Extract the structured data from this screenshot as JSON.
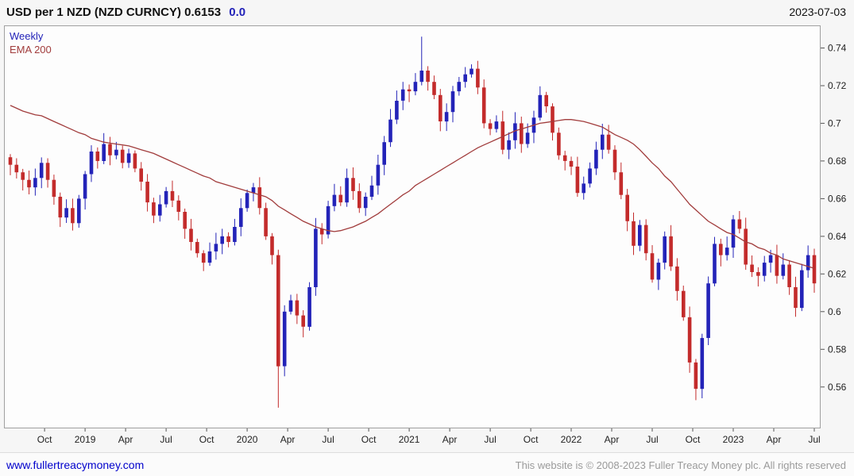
{
  "header": {
    "title": "USD per 1 NZD (NZD CURNCY) 0.6153",
    "change": "0.0",
    "date": "2023-07-03"
  },
  "legend": {
    "timeframe": "Weekly",
    "ema_label": "EMA 200"
  },
  "footer": {
    "link": "www.fullertreacymoney.com",
    "copyright": "This website is © 2008-2023 Fuller Treacy Money plc. All rights reserved"
  },
  "colors": {
    "up": "#2323b8",
    "down": "#c32b2b",
    "ema": "#a13c3c",
    "plot_bg": "#fdfdfd",
    "border": "#a0a0a0",
    "tick": "#555555",
    "label": "#222222",
    "link": "#0000cc",
    "legend_tf": "#2323b8"
  },
  "chart_data": {
    "type": "candlestick",
    "title": "USD per 1 NZD (NZD CURNCY)",
    "timeframe": "Weekly",
    "overlay": "EMA 200",
    "last_price": 0.6153,
    "change": 0.0,
    "ylim": [
      0.538,
      0.752
    ],
    "y_ticks": [
      0.74,
      0.72,
      0.7,
      0.68,
      0.66,
      0.64,
      0.62,
      0.6,
      0.58,
      0.56
    ],
    "y_tick_labels": [
      "0.74",
      "0.72",
      "0.7",
      "0.68",
      "0.66",
      "0.64",
      "0.62",
      "0.6",
      "0.58",
      "0.56"
    ],
    "x_ticks": [
      "Oct",
      "2019",
      "Apr",
      "Jul",
      "Oct",
      "2020",
      "Apr",
      "Jul",
      "Oct",
      "2021",
      "Apr",
      "Jul",
      "Oct",
      "2022",
      "Apr",
      "Jul",
      "Oct",
      "2023",
      "Apr",
      "Jul"
    ],
    "x_tick_positions": [
      5.5,
      12,
      18.5,
      25,
      31.5,
      38,
      44.5,
      51,
      57.5,
      64,
      70.5,
      77,
      83.5,
      90,
      96.5,
      103,
      109.5,
      116,
      122.5,
      129
    ],
    "closes": [
      0.678,
      0.674,
      0.67,
      0.666,
      0.671,
      0.679,
      0.67,
      0.661,
      0.65,
      0.655,
      0.647,
      0.66,
      0.673,
      0.685,
      0.68,
      0.689,
      0.683,
      0.686,
      0.679,
      0.684,
      0.676,
      0.669,
      0.658,
      0.651,
      0.657,
      0.664,
      0.659,
      0.653,
      0.644,
      0.637,
      0.631,
      0.626,
      0.632,
      0.636,
      0.64,
      0.637,
      0.645,
      0.655,
      0.663,
      0.666,
      0.655,
      0.64,
      0.63,
      0.571,
      0.6,
      0.606,
      0.598,
      0.592,
      0.613,
      0.644,
      0.641,
      0.656,
      0.662,
      0.658,
      0.671,
      0.664,
      0.655,
      0.661,
      0.667,
      0.678,
      0.69,
      0.702,
      0.712,
      0.718,
      0.717,
      0.722,
      0.728,
      0.722,
      0.715,
      0.701,
      0.706,
      0.717,
      0.722,
      0.726,
      0.729,
      0.719,
      0.7,
      0.697,
      0.701,
      0.686,
      0.691,
      0.7,
      0.689,
      0.695,
      0.703,
      0.715,
      0.709,
      0.695,
      0.683,
      0.68,
      0.677,
      0.663,
      0.668,
      0.676,
      0.686,
      0.694,
      0.686,
      0.674,
      0.662,
      0.648,
      0.635,
      0.646,
      0.631,
      0.617,
      0.626,
      0.64,
      0.624,
      0.611,
      0.597,
      0.573,
      0.559,
      0.586,
      0.615,
      0.636,
      0.63,
      0.634,
      0.649,
      0.644,
      0.625,
      0.621,
      0.619,
      0.626,
      0.63,
      0.619,
      0.625,
      0.613,
      0.602,
      0.622,
      0.63,
      0.615
    ],
    "ema": [
      0.7095,
      0.708,
      0.7065,
      0.7055,
      0.7045,
      0.704,
      0.7025,
      0.701,
      0.6995,
      0.698,
      0.6965,
      0.695,
      0.694,
      0.692,
      0.691,
      0.69,
      0.6895,
      0.689,
      0.6885,
      0.688,
      0.687,
      0.686,
      0.685,
      0.684,
      0.6825,
      0.681,
      0.6795,
      0.678,
      0.6765,
      0.675,
      0.6735,
      0.672,
      0.671,
      0.669,
      0.668,
      0.667,
      0.666,
      0.665,
      0.664,
      0.663,
      0.662,
      0.661,
      0.659,
      0.656,
      0.654,
      0.652,
      0.65,
      0.648,
      0.6465,
      0.645,
      0.644,
      0.643,
      0.6425,
      0.643,
      0.644,
      0.645,
      0.6465,
      0.648,
      0.65,
      0.652,
      0.6545,
      0.657,
      0.6595,
      0.662,
      0.664,
      0.667,
      0.669,
      0.671,
      0.673,
      0.675,
      0.677,
      0.679,
      0.681,
      0.683,
      0.685,
      0.687,
      0.6885,
      0.69,
      0.6915,
      0.693,
      0.6945,
      0.696,
      0.697,
      0.698,
      0.699,
      0.7,
      0.7005,
      0.701,
      0.7015,
      0.702,
      0.702,
      0.7015,
      0.701,
      0.7,
      0.699,
      0.698,
      0.696,
      0.694,
      0.6925,
      0.691,
      0.689,
      0.686,
      0.6825,
      0.679,
      0.676,
      0.672,
      0.669,
      0.665,
      0.661,
      0.657,
      0.654,
      0.651,
      0.648,
      0.646,
      0.644,
      0.642,
      0.641,
      0.639,
      0.637,
      0.636,
      0.634,
      0.633,
      0.631,
      0.63,
      0.628,
      0.627,
      0.626,
      0.625,
      0.624,
      0.623
    ],
    "extremes": {
      "43": {
        "low": 0.549
      },
      "66": {
        "high": 0.746
      },
      "110": {
        "low": 0.553
      }
    }
  }
}
